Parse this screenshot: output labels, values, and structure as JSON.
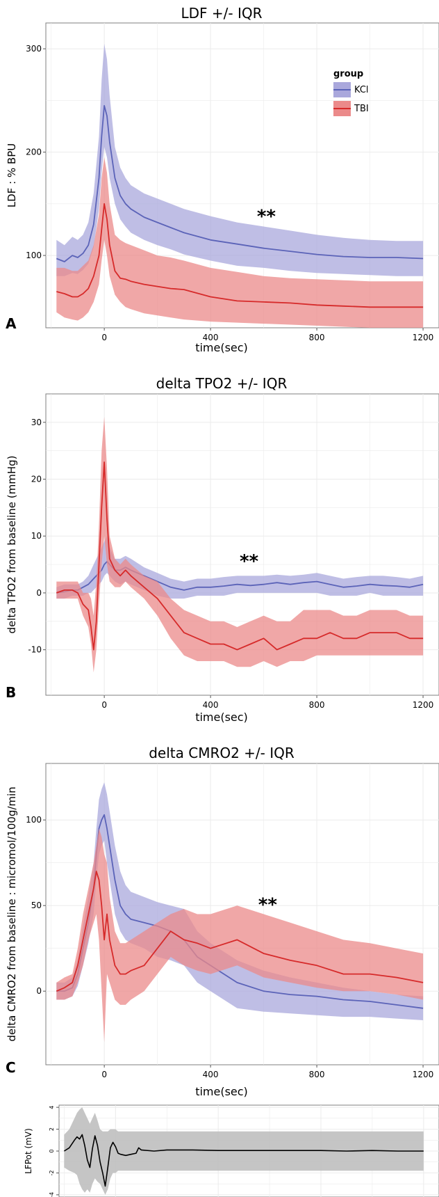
{
  "colors": {
    "kcl_line": "#5b63b8",
    "kcl_band": "#aaa8dc",
    "tbi_line": "#d62a2a",
    "tbi_band": "#eb8a8a",
    "lfpot_line": "#000000",
    "lfpot_band": "#bfbfbf",
    "grid": "#ebebeb",
    "panel_border": "#7f7f7f"
  },
  "legend": {
    "title": "group",
    "items": [
      "KCl",
      "TBI"
    ]
  },
  "chart_data": [
    {
      "type": "line",
      "letter": "A",
      "title": "LDF +/- IQR",
      "xlabel": "time(sec)",
      "ylabel": "LDF : % BPU",
      "annotation": "**",
      "annotation_x": 610,
      "annotation_y": 140,
      "xlim": [
        -220,
        1260
      ],
      "ylim": [
        30,
        325
      ],
      "xticks": [
        0,
        400,
        800,
        1200
      ],
      "yticks": [
        100,
        200,
        300
      ],
      "x": [
        -180,
        -150,
        -120,
        -100,
        -80,
        -60,
        -40,
        -20,
        -10,
        0,
        10,
        20,
        40,
        60,
        80,
        100,
        150,
        200,
        250,
        300,
        400,
        500,
        600,
        700,
        800,
        900,
        1000,
        1100,
        1200
      ],
      "series": [
        {
          "name": "KCl",
          "values": [
            97,
            94,
            100,
            98,
            102,
            110,
            130,
            175,
            215,
            245,
            235,
            210,
            175,
            158,
            150,
            145,
            137,
            132,
            127,
            122,
            115,
            111,
            107,
            104,
            101,
            99,
            98,
            98,
            97
          ],
          "lower": [
            80,
            80,
            83,
            82,
            86,
            92,
            108,
            145,
            180,
            205,
            195,
            175,
            150,
            135,
            128,
            122,
            115,
            110,
            106,
            101,
            95,
            90,
            88,
            85,
            83,
            82,
            81,
            80,
            80
          ],
          "upper": [
            115,
            110,
            118,
            115,
            120,
            132,
            160,
            215,
            270,
            305,
            290,
            255,
            205,
            185,
            175,
            168,
            160,
            155,
            150,
            145,
            138,
            132,
            128,
            124,
            120,
            117,
            115,
            114,
            114
          ]
        },
        {
          "name": "TBI",
          "values": [
            65,
            63,
            60,
            60,
            63,
            68,
            80,
            100,
            125,
            150,
            135,
            110,
            85,
            78,
            77,
            75,
            72,
            70,
            68,
            67,
            60,
            56,
            55,
            54,
            52,
            51,
            50,
            50,
            50
          ],
          "lower": [
            45,
            40,
            38,
            37,
            40,
            45,
            55,
            72,
            95,
            115,
            100,
            80,
            62,
            55,
            50,
            48,
            44,
            42,
            40,
            38,
            36,
            35,
            34,
            33,
            32,
            31,
            30,
            30,
            30
          ],
          "upper": [
            88,
            88,
            85,
            85,
            90,
            95,
            110,
            140,
            175,
            195,
            180,
            150,
            120,
            115,
            112,
            110,
            105,
            100,
            98,
            95,
            88,
            84,
            80,
            78,
            77,
            76,
            75,
            75,
            75
          ]
        }
      ]
    },
    {
      "type": "line",
      "letter": "B",
      "title": "delta TPO2 +/- IQR",
      "xlabel": "time(sec)",
      "ylabel": "delta TPO2 from baseline (mmHg)",
      "annotation": "**",
      "annotation_x": 545,
      "annotation_y": 6,
      "xlim": [
        -220,
        1260
      ],
      "ylim": [
        -18,
        35
      ],
      "xticks": [
        0,
        400,
        800,
        1200
      ],
      "yticks": [
        -10,
        0,
        10,
        20,
        30
      ],
      "x": [
        -180,
        -150,
        -120,
        -100,
        -80,
        -60,
        -50,
        -40,
        -30,
        -20,
        -10,
        0,
        10,
        20,
        40,
        60,
        80,
        100,
        150,
        200,
        250,
        300,
        350,
        400,
        450,
        500,
        550,
        600,
        650,
        700,
        750,
        800,
        850,
        900,
        950,
        1000,
        1050,
        1100,
        1150,
        1200
      ],
      "series": [
        {
          "name": "KCl",
          "values": [
            0,
            0.2,
            0.5,
            0.5,
            1,
            1.5,
            2,
            2.5,
            3,
            3.5,
            4,
            5,
            5.5,
            5,
            4,
            4,
            4.5,
            4,
            3,
            2,
            1,
            0.5,
            1,
            1,
            1.2,
            1.5,
            1.3,
            1.5,
            1.8,
            1.5,
            1.8,
            2,
            1.5,
            1,
            1.2,
            1.5,
            1.3,
            1.2,
            1,
            1.5
          ],
          "lower": [
            -1,
            -1,
            -0.5,
            -0.5,
            -0.5,
            0,
            0,
            0.5,
            1,
            1.5,
            2,
            3,
            3.5,
            3,
            2,
            1.5,
            2,
            1.5,
            0.5,
            -0.5,
            -1,
            -1,
            -0.5,
            -0.5,
            -0.5,
            0,
            0,
            0,
            0,
            0,
            0,
            0,
            -0.5,
            -0.5,
            -0.5,
            0,
            -0.5,
            -0.5,
            -0.5,
            -0.5
          ],
          "upper": [
            1,
            1.5,
            1.5,
            1.5,
            2,
            3,
            4,
            5,
            6,
            7,
            8,
            9,
            10,
            8,
            6,
            6,
            6.5,
            6,
            4.5,
            3.5,
            2.5,
            2,
            2.5,
            2.5,
            2.8,
            3,
            3,
            3,
            3.2,
            3,
            3.2,
            3.5,
            3,
            2.5,
            2.8,
            3,
            3,
            2.8,
            2.5,
            3
          ]
        },
        {
          "name": "TBI",
          "values": [
            0,
            0.5,
            0.5,
            0,
            -2,
            -3,
            -6,
            -10,
            -5,
            5,
            15,
            23,
            13,
            6,
            4,
            3,
            4,
            3,
            1,
            -1,
            -4,
            -7,
            -8,
            -9,
            -9,
            -10,
            -9,
            -8,
            -10,
            -9,
            -8,
            -8,
            -7,
            -8,
            -8,
            -7,
            -7,
            -7,
            -8,
            -8
          ],
          "lower": [
            -1,
            -1,
            -1,
            -1,
            -4,
            -6,
            -9,
            -14,
            -10,
            -2,
            5,
            10,
            5,
            2,
            1,
            1,
            2,
            1,
            -1,
            -4,
            -8,
            -11,
            -12,
            -12,
            -12,
            -13,
            -13,
            -12,
            -13,
            -12,
            -12,
            -11,
            -11,
            -11,
            -11,
            -11,
            -11,
            -11,
            -11,
            -11
          ],
          "upper": [
            2,
            2,
            2,
            2,
            0,
            0,
            -1,
            -4,
            2,
            12,
            25,
            31,
            22,
            10,
            6,
            5,
            6,
            5,
            3,
            2,
            -1,
            -3,
            -4,
            -5,
            -5,
            -6,
            -5,
            -4,
            -5,
            -5,
            -3,
            -3,
            -3,
            -4,
            -4,
            -3,
            -3,
            -3,
            -4,
            -4
          ]
        }
      ]
    },
    {
      "type": "line",
      "letter": "C",
      "title": "delta CMRO2 +/- IQR",
      "xlabel": "time(sec)",
      "ylabel": "delta CMRO2 from baseline : micromol/100g/min",
      "annotation": "**",
      "annotation_x": 615,
      "annotation_y": 52,
      "xlim": [
        -220,
        1260
      ],
      "ylim": [
        -43,
        133
      ],
      "xticks": [
        0,
        400,
        800,
        1200
      ],
      "yticks": [
        0,
        50,
        100
      ],
      "x": [
        -180,
        -150,
        -120,
        -100,
        -80,
        -60,
        -40,
        -30,
        -20,
        -10,
        0,
        10,
        20,
        40,
        60,
        80,
        100,
        150,
        200,
        250,
        300,
        350,
        400,
        500,
        600,
        700,
        800,
        900,
        1000,
        1100,
        1200
      ],
      "series": [
        {
          "name": "KCl",
          "values": [
            0,
            0,
            2,
            10,
            25,
            40,
            60,
            80,
            95,
            100,
            103,
            95,
            85,
            65,
            50,
            45,
            42,
            40,
            38,
            35,
            30,
            20,
            15,
            5,
            0,
            -2,
            -3,
            -5,
            -6,
            -8,
            -10
          ],
          "lower": [
            -5,
            -5,
            -3,
            3,
            15,
            28,
            45,
            65,
            80,
            85,
            88,
            75,
            65,
            45,
            35,
            30,
            28,
            25,
            20,
            18,
            15,
            5,
            0,
            -10,
            -12,
            -13,
            -14,
            -15,
            -15,
            -16,
            -17
          ],
          "upper": [
            5,
            5,
            8,
            18,
            38,
            55,
            75,
            95,
            112,
            118,
            122,
            115,
            105,
            85,
            70,
            62,
            58,
            55,
            52,
            50,
            48,
            35,
            28,
            18,
            12,
            8,
            5,
            2,
            0,
            -2,
            -3
          ]
        },
        {
          "name": "TBI",
          "values": [
            0,
            2,
            5,
            15,
            30,
            45,
            60,
            70,
            65,
            50,
            30,
            45,
            30,
            15,
            10,
            10,
            12,
            15,
            25,
            35,
            30,
            28,
            25,
            30,
            22,
            18,
            15,
            10,
            10,
            8,
            5
          ],
          "lower": [
            -5,
            -5,
            -3,
            5,
            15,
            30,
            40,
            45,
            30,
            0,
            -30,
            10,
            5,
            -5,
            -8,
            -8,
            -5,
            0,
            10,
            20,
            15,
            12,
            10,
            15,
            8,
            5,
            2,
            0,
            0,
            -2,
            -5
          ],
          "upper": [
            5,
            8,
            10,
            25,
            45,
            60,
            75,
            85,
            95,
            90,
            80,
            75,
            55,
            35,
            28,
            28,
            30,
            35,
            40,
            45,
            48,
            45,
            45,
            50,
            45,
            40,
            35,
            30,
            28,
            25,
            22
          ]
        }
      ]
    },
    {
      "type": "line",
      "ylabel": "LFPot (mV)",
      "xlim": [
        -220,
        1260
      ],
      "ylim": [
        -4.2,
        4.2
      ],
      "yticks": [
        -4,
        -2,
        0,
        2,
        4
      ],
      "x": [
        -200,
        -180,
        -160,
        -150,
        -140,
        -130,
        -120,
        -110,
        -100,
        -90,
        -80,
        -70,
        -60,
        -50,
        -40,
        -30,
        -20,
        -10,
        0,
        10,
        20,
        40,
        60,
        80,
        90,
        100,
        150,
        200,
        300,
        400,
        500,
        600,
        700,
        800,
        900,
        1000,
        1100,
        1200
      ],
      "series": [
        {
          "name": "LFPot",
          "values": [
            0,
            0.3,
            1.0,
            1.3,
            1.1,
            1.5,
            0.5,
            -0.8,
            -1.5,
            0.2,
            1.4,
            0.5,
            -1.0,
            -2.0,
            -3.2,
            -1.5,
            0.3,
            0.8,
            0.4,
            -0.2,
            -0.3,
            -0.4,
            -0.3,
            -0.2,
            0.3,
            0.1,
            0.0,
            0.1,
            0.1,
            0.05,
            0.05,
            0.05,
            0.05,
            0.05,
            0.0,
            0.05,
            0.0,
            0.0
          ],
          "lower": [
            -1.5,
            -1.8,
            -2.0,
            -2.2,
            -3.0,
            -3.5,
            -3.8,
            -3.5,
            -3.8,
            -3.0,
            -2.5,
            -2.8,
            -3.0,
            -3.5,
            -4.0,
            -3.5,
            -2.5,
            -2.0,
            -2.0,
            -1.8,
            -1.8,
            -1.8,
            -1.8,
            -1.8,
            -1.8,
            -1.8,
            -1.8,
            -1.8,
            -1.8,
            -1.8,
            -1.8,
            -1.8,
            -1.8,
            -1.8,
            -1.8,
            -1.8,
            -1.8,
            -1.8
          ],
          "upper": [
            1.5,
            2.0,
            3.0,
            3.5,
            3.8,
            4.0,
            3.5,
            3.0,
            2.5,
            3.0,
            3.5,
            2.8,
            2.0,
            1.8,
            1.8,
            1.8,
            2.0,
            2.0,
            2.0,
            1.8,
            1.8,
            1.8,
            1.8,
            1.8,
            1.8,
            1.8,
            1.8,
            1.8,
            1.8,
            1.8,
            1.8,
            1.8,
            1.8,
            1.8,
            1.8,
            1.8,
            1.8,
            1.8
          ]
        }
      ]
    }
  ]
}
